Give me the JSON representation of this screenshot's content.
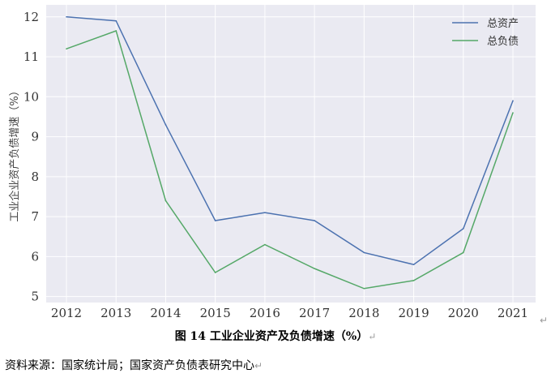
{
  "chart_data": {
    "type": "line",
    "x": [
      "2012",
      "2013",
      "2014",
      "2015",
      "2016",
      "2017",
      "2018",
      "2019",
      "2020",
      "2021"
    ],
    "series": [
      {
        "name": "总资产",
        "values": [
          12.0,
          11.9,
          9.3,
          6.9,
          7.1,
          6.9,
          6.1,
          5.8,
          6.7,
          9.9
        ],
        "color": "#4c72b0"
      },
      {
        "name": "总负债",
        "values": [
          11.2,
          11.65,
          7.4,
          5.6,
          6.3,
          5.7,
          5.2,
          5.4,
          6.1,
          9.6
        ],
        "color": "#55a868"
      }
    ],
    "ylabel": "工业企业资产负债增速（%）",
    "xlabel": "",
    "ylim": [
      4.85,
      12.3
    ],
    "yticks": [
      5,
      6,
      7,
      8,
      9,
      10,
      11,
      12
    ],
    "grid": true,
    "legend": "top-right",
    "background": "#eaeaf2"
  },
  "caption": "图 14  工业企业资产及负债增速（%）",
  "source": "资料来源：国家统计局；国家资产负债表研究中心",
  "paragraph_mark": "↵"
}
